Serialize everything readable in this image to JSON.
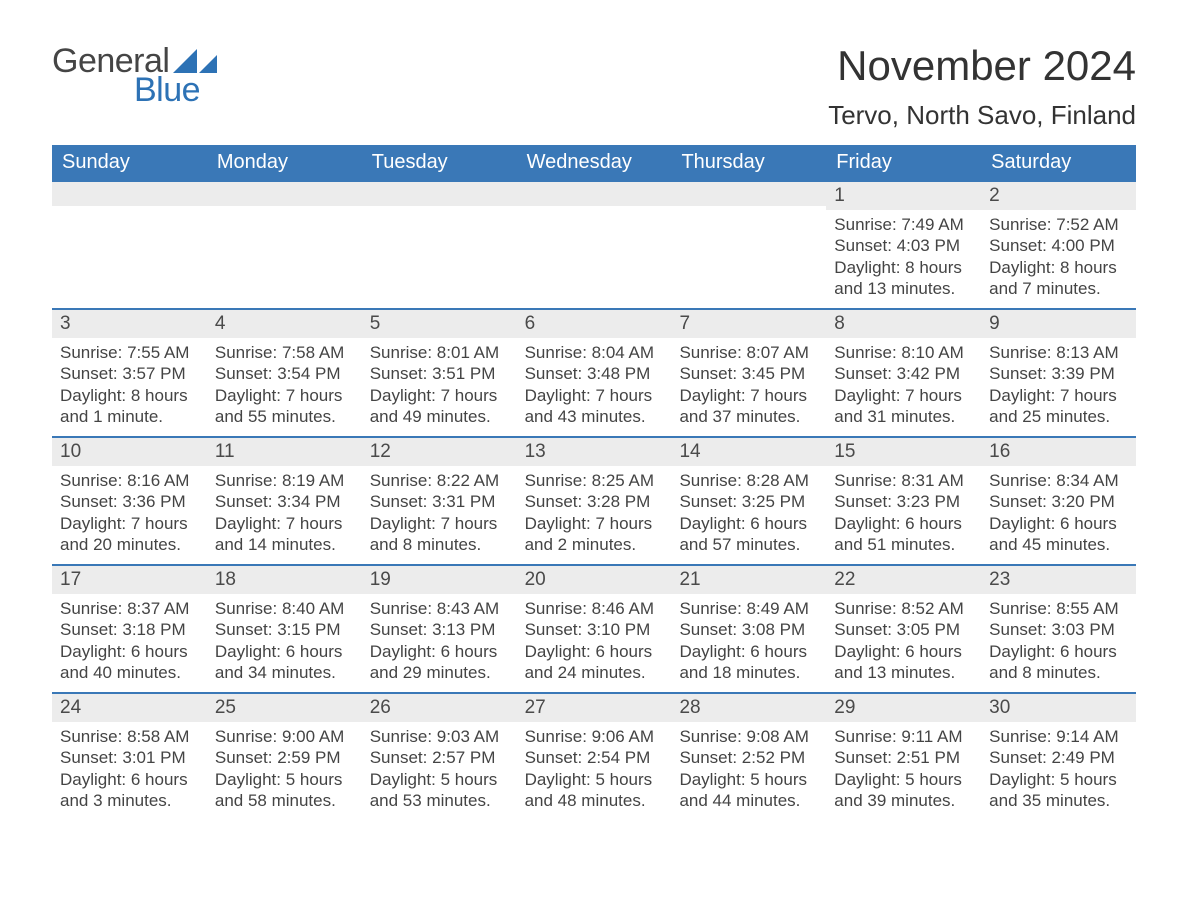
{
  "logo": {
    "general": "General",
    "blue": "Blue"
  },
  "title": "November 2024",
  "location": "Tervo, North Savo, Finland",
  "colors": {
    "header_bg": "#3a78b7",
    "daynum_bg": "#ececec",
    "text": "#3a3a3a",
    "logo_blue": "#2d72b5"
  },
  "weekdays": [
    "Sunday",
    "Monday",
    "Tuesday",
    "Wednesday",
    "Thursday",
    "Friday",
    "Saturday"
  ],
  "weeks": [
    [
      {
        "empty": true
      },
      {
        "empty": true
      },
      {
        "empty": true
      },
      {
        "empty": true
      },
      {
        "empty": true
      },
      {
        "num": "1",
        "sunrise": "Sunrise: 7:49 AM",
        "sunset": "Sunset: 4:03 PM",
        "daylight": "Daylight: 8 hours and 13 minutes."
      },
      {
        "num": "2",
        "sunrise": "Sunrise: 7:52 AM",
        "sunset": "Sunset: 4:00 PM",
        "daylight": "Daylight: 8 hours and 7 minutes."
      }
    ],
    [
      {
        "num": "3",
        "sunrise": "Sunrise: 7:55 AM",
        "sunset": "Sunset: 3:57 PM",
        "daylight": "Daylight: 8 hours and 1 minute."
      },
      {
        "num": "4",
        "sunrise": "Sunrise: 7:58 AM",
        "sunset": "Sunset: 3:54 PM",
        "daylight": "Daylight: 7 hours and 55 minutes."
      },
      {
        "num": "5",
        "sunrise": "Sunrise: 8:01 AM",
        "sunset": "Sunset: 3:51 PM",
        "daylight": "Daylight: 7 hours and 49 minutes."
      },
      {
        "num": "6",
        "sunrise": "Sunrise: 8:04 AM",
        "sunset": "Sunset: 3:48 PM",
        "daylight": "Daylight: 7 hours and 43 minutes."
      },
      {
        "num": "7",
        "sunrise": "Sunrise: 8:07 AM",
        "sunset": "Sunset: 3:45 PM",
        "daylight": "Daylight: 7 hours and 37 minutes."
      },
      {
        "num": "8",
        "sunrise": "Sunrise: 8:10 AM",
        "sunset": "Sunset: 3:42 PM",
        "daylight": "Daylight: 7 hours and 31 minutes."
      },
      {
        "num": "9",
        "sunrise": "Sunrise: 8:13 AM",
        "sunset": "Sunset: 3:39 PM",
        "daylight": "Daylight: 7 hours and 25 minutes."
      }
    ],
    [
      {
        "num": "10",
        "sunrise": "Sunrise: 8:16 AM",
        "sunset": "Sunset: 3:36 PM",
        "daylight": "Daylight: 7 hours and 20 minutes."
      },
      {
        "num": "11",
        "sunrise": "Sunrise: 8:19 AM",
        "sunset": "Sunset: 3:34 PM",
        "daylight": "Daylight: 7 hours and 14 minutes."
      },
      {
        "num": "12",
        "sunrise": "Sunrise: 8:22 AM",
        "sunset": "Sunset: 3:31 PM",
        "daylight": "Daylight: 7 hours and 8 minutes."
      },
      {
        "num": "13",
        "sunrise": "Sunrise: 8:25 AM",
        "sunset": "Sunset: 3:28 PM",
        "daylight": "Daylight: 7 hours and 2 minutes."
      },
      {
        "num": "14",
        "sunrise": "Sunrise: 8:28 AM",
        "sunset": "Sunset: 3:25 PM",
        "daylight": "Daylight: 6 hours and 57 minutes."
      },
      {
        "num": "15",
        "sunrise": "Sunrise: 8:31 AM",
        "sunset": "Sunset: 3:23 PM",
        "daylight": "Daylight: 6 hours and 51 minutes."
      },
      {
        "num": "16",
        "sunrise": "Sunrise: 8:34 AM",
        "sunset": "Sunset: 3:20 PM",
        "daylight": "Daylight: 6 hours and 45 minutes."
      }
    ],
    [
      {
        "num": "17",
        "sunrise": "Sunrise: 8:37 AM",
        "sunset": "Sunset: 3:18 PM",
        "daylight": "Daylight: 6 hours and 40 minutes."
      },
      {
        "num": "18",
        "sunrise": "Sunrise: 8:40 AM",
        "sunset": "Sunset: 3:15 PM",
        "daylight": "Daylight: 6 hours and 34 minutes."
      },
      {
        "num": "19",
        "sunrise": "Sunrise: 8:43 AM",
        "sunset": "Sunset: 3:13 PM",
        "daylight": "Daylight: 6 hours and 29 minutes."
      },
      {
        "num": "20",
        "sunrise": "Sunrise: 8:46 AM",
        "sunset": "Sunset: 3:10 PM",
        "daylight": "Daylight: 6 hours and 24 minutes."
      },
      {
        "num": "21",
        "sunrise": "Sunrise: 8:49 AM",
        "sunset": "Sunset: 3:08 PM",
        "daylight": "Daylight: 6 hours and 18 minutes."
      },
      {
        "num": "22",
        "sunrise": "Sunrise: 8:52 AM",
        "sunset": "Sunset: 3:05 PM",
        "daylight": "Daylight: 6 hours and 13 minutes."
      },
      {
        "num": "23",
        "sunrise": "Sunrise: 8:55 AM",
        "sunset": "Sunset: 3:03 PM",
        "daylight": "Daylight: 6 hours and 8 minutes."
      }
    ],
    [
      {
        "num": "24",
        "sunrise": "Sunrise: 8:58 AM",
        "sunset": "Sunset: 3:01 PM",
        "daylight": "Daylight: 6 hours and 3 minutes."
      },
      {
        "num": "25",
        "sunrise": "Sunrise: 9:00 AM",
        "sunset": "Sunset: 2:59 PM",
        "daylight": "Daylight: 5 hours and 58 minutes."
      },
      {
        "num": "26",
        "sunrise": "Sunrise: 9:03 AM",
        "sunset": "Sunset: 2:57 PM",
        "daylight": "Daylight: 5 hours and 53 minutes."
      },
      {
        "num": "27",
        "sunrise": "Sunrise: 9:06 AM",
        "sunset": "Sunset: 2:54 PM",
        "daylight": "Daylight: 5 hours and 48 minutes."
      },
      {
        "num": "28",
        "sunrise": "Sunrise: 9:08 AM",
        "sunset": "Sunset: 2:52 PM",
        "daylight": "Daylight: 5 hours and 44 minutes."
      },
      {
        "num": "29",
        "sunrise": "Sunrise: 9:11 AM",
        "sunset": "Sunset: 2:51 PM",
        "daylight": "Daylight: 5 hours and 39 minutes."
      },
      {
        "num": "30",
        "sunrise": "Sunrise: 9:14 AM",
        "sunset": "Sunset: 2:49 PM",
        "daylight": "Daylight: 5 hours and 35 minutes."
      }
    ]
  ]
}
